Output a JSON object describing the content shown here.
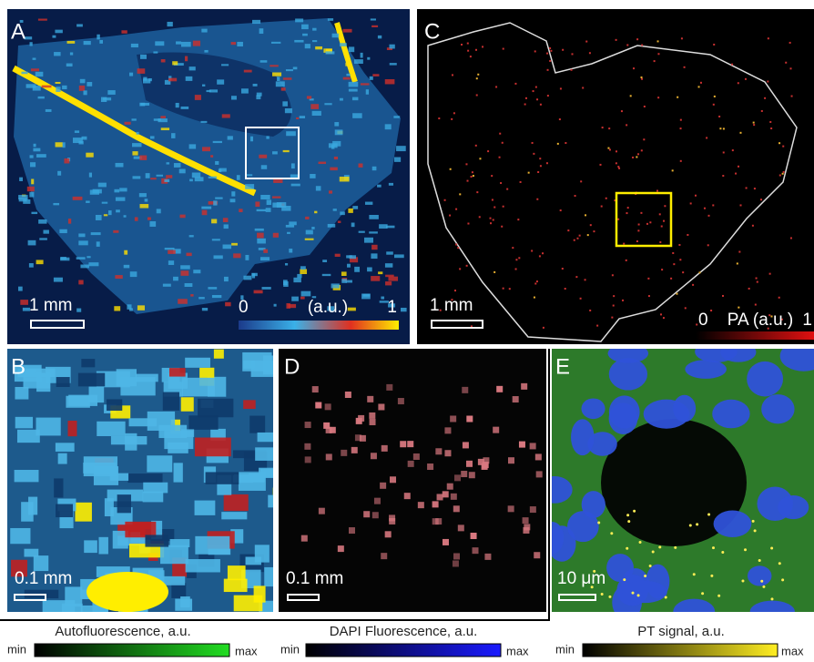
{
  "panels": [
    {
      "label": "A",
      "scale_bar": "1 mm",
      "colorbar": {
        "min": "0",
        "title": "(a.u.)",
        "max": "1"
      }
    },
    {
      "label": "C",
      "scale_bar": "1 mm",
      "colorbar": {
        "min": "0",
        "title": "PA (a.u.)",
        "max": "1"
      }
    },
    {
      "label": "B",
      "scale_bar": "0.1 mm"
    },
    {
      "label": "D",
      "scale_bar": "0.1 mm"
    },
    {
      "label": "E",
      "scale_bar": "10 μm"
    }
  ],
  "legends": [
    {
      "title": "Autofluorescence, a.u.",
      "min": "min",
      "max": "max"
    },
    {
      "title": "DAPI Fluorescence, a.u.",
      "min": "min",
      "max": "max"
    },
    {
      "title": "PT signal, a.u.",
      "min": "min",
      "max": "max"
    }
  ]
}
